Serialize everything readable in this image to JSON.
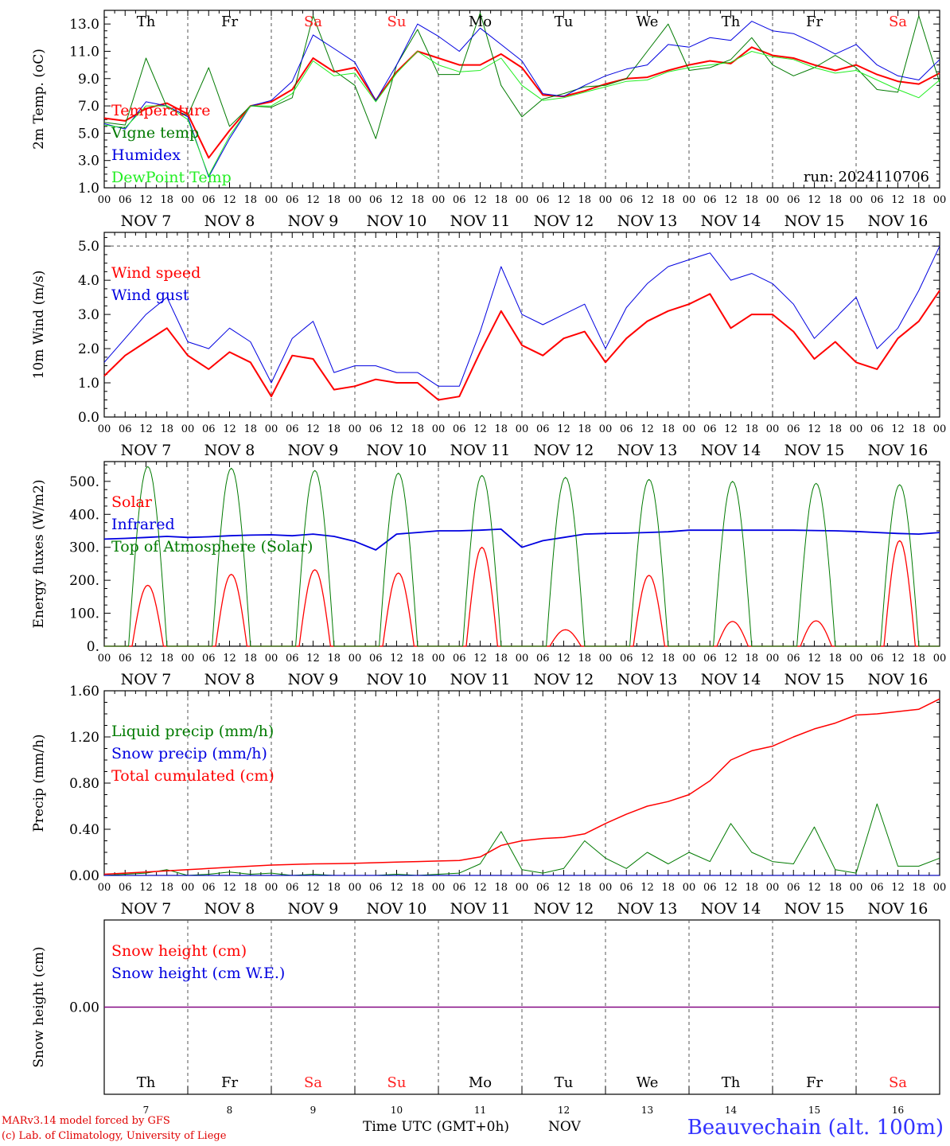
{
  "footer": {
    "credit_line1": "MARv3.14 model forced by GFS",
    "credit_line2": "(c) Lab. of Climatology, University of Liege",
    "time_label": "Time UTC (GMT+0h)",
    "month_label": "NOV",
    "station": "Beauvechain (alt. 100m)"
  },
  "colors": {
    "red": "#ff0000",
    "green": "#007a00",
    "blue": "#0000e0",
    "light_green": "#22ee22",
    "purple": "#800080",
    "grid": "#555555",
    "saturday_sunday": "#ff2020"
  },
  "days": [
    "Th",
    "Fr",
    "Sa",
    "Su",
    "Mo",
    "Tu",
    "We",
    "Th",
    "Fr",
    "Sa"
  ],
  "weekend": [
    false,
    false,
    true,
    true,
    false,
    false,
    false,
    false,
    false,
    true
  ],
  "dates": [
    "NOV  7",
    "NOV  8",
    "NOV  9",
    "NOV 10",
    "NOV 11",
    "NOV 12",
    "NOV 13",
    "NOV 14",
    "NOV 15",
    "NOV 16"
  ],
  "day_numbers": [
    "7",
    "8",
    "9",
    "10",
    "11",
    "12",
    "13",
    "14",
    "15",
    "16"
  ],
  "hour_ticks": [
    "00",
    "06",
    "12",
    "18"
  ],
  "end_tick": "00",
  "chart_data": [
    {
      "type": "line",
      "ylabel": "2m Temp. (oC)",
      "ylim": [
        1.0,
        14.0
      ],
      "yticks": [
        "1.0",
        "3.0",
        "5.0",
        "7.0",
        "9.0",
        "11.0",
        "13.0"
      ],
      "annotation": "run: 2024110706",
      "x_hours": [
        0,
        6,
        12,
        18,
        24,
        30,
        36,
        42,
        48,
        54,
        60,
        66,
        72,
        78,
        84,
        90,
        96,
        102,
        108,
        114,
        120,
        126,
        132,
        138,
        144,
        150,
        156,
        162,
        168,
        174,
        180,
        186,
        192,
        198,
        204,
        210,
        216,
        222,
        228,
        234,
        240
      ],
      "series": [
        {
          "name": "Temperature",
          "color": "#ff0000",
          "width": 2,
          "values": [
            6.1,
            5.9,
            6.8,
            7.2,
            6.4,
            3.2,
            5.2,
            7.0,
            7.3,
            8.2,
            10.5,
            9.5,
            9.8,
            7.4,
            9.5,
            11.0,
            10.5,
            10.0,
            10.0,
            10.8,
            9.8,
            7.8,
            7.7,
            8.1,
            8.6,
            9.0,
            9.1,
            9.6,
            10.0,
            10.3,
            10.1,
            11.3,
            10.7,
            10.5,
            10.0,
            9.6,
            10.0,
            9.3,
            8.8,
            8.6,
            9.4
          ]
        },
        {
          "name": "Vigne temp",
          "color": "#007a00",
          "width": 1,
          "values": [
            5.8,
            5.6,
            10.5,
            6.9,
            6.3,
            9.8,
            5.5,
            7.0,
            6.9,
            7.6,
            13.6,
            9.6,
            8.5,
            4.6,
            10.0,
            12.6,
            9.3,
            9.3,
            13.8,
            8.5,
            6.2,
            7.5,
            7.9,
            8.4,
            8.5,
            9.0,
            11.0,
            13.0,
            9.6,
            9.8,
            10.4,
            12.0,
            10.0,
            9.2,
            9.8,
            10.7,
            9.8,
            8.2,
            8.0,
            13.6,
            8.7
          ]
        },
        {
          "name": "Humidex",
          "color": "#0000e0",
          "width": 1,
          "values": [
            5.7,
            5.3,
            7.3,
            7.0,
            6.2,
            1.8,
            4.6,
            7.0,
            7.4,
            8.8,
            12.2,
            11.2,
            10.2,
            7.4,
            10.0,
            13.0,
            12.1,
            11.0,
            12.7,
            11.5,
            10.3,
            7.9,
            7.7,
            8.5,
            9.2,
            9.7,
            10.0,
            11.5,
            11.3,
            12.0,
            11.8,
            13.2,
            12.5,
            12.3,
            11.6,
            10.8,
            11.5,
            10.0,
            9.2,
            8.9,
            10.4
          ]
        },
        {
          "name": "DewPoint Temp",
          "color": "#22ee22",
          "width": 1,
          "values": [
            5.6,
            5.4,
            7.0,
            7.0,
            6.0,
            1.9,
            4.8,
            7.0,
            7.0,
            7.9,
            10.3,
            9.2,
            9.4,
            7.3,
            9.4,
            11.0,
            10.0,
            9.5,
            9.6,
            10.5,
            8.5,
            7.4,
            7.6,
            8.0,
            8.4,
            8.8,
            8.9,
            9.5,
            9.8,
            10.0,
            10.2,
            11.0,
            10.6,
            10.4,
            9.8,
            9.4,
            9.6,
            8.9,
            8.2,
            7.6,
            8.9
          ]
        }
      ]
    },
    {
      "type": "line",
      "ylabel": "10m Wind (m/s)",
      "ylim": [
        0.0,
        5.0
      ],
      "yticks": [
        "0.0",
        "1.0",
        "2.0",
        "3.0",
        "4.0",
        "5.0"
      ],
      "x_hours": [
        0,
        6,
        12,
        18,
        24,
        30,
        36,
        42,
        48,
        54,
        60,
        66,
        72,
        78,
        84,
        90,
        96,
        102,
        108,
        114,
        120,
        126,
        132,
        138,
        144,
        150,
        156,
        162,
        168,
        174,
        180,
        186,
        192,
        198,
        204,
        210,
        216,
        222,
        228,
        234,
        240
      ],
      "series": [
        {
          "name": "Wind speed",
          "color": "#ff0000",
          "width": 2,
          "values": [
            1.2,
            1.8,
            2.2,
            2.6,
            1.8,
            1.4,
            1.9,
            1.6,
            0.6,
            1.8,
            1.7,
            0.8,
            0.9,
            1.1,
            1.0,
            1.0,
            0.5,
            0.6,
            1.9,
            3.1,
            2.1,
            1.8,
            2.3,
            2.5,
            1.6,
            2.3,
            2.8,
            3.1,
            3.3,
            3.6,
            2.6,
            3.0,
            3.0,
            2.5,
            1.7,
            2.2,
            1.6,
            1.4,
            2.3,
            2.8,
            3.7
          ]
        },
        {
          "name": "Wind gust",
          "color": "#0000e0",
          "width": 1,
          "values": [
            1.6,
            2.3,
            3.0,
            3.5,
            2.2,
            2.0,
            2.6,
            2.2,
            1.0,
            2.3,
            2.8,
            1.3,
            1.5,
            1.5,
            1.3,
            1.3,
            0.9,
            0.9,
            2.5,
            4.4,
            3.0,
            2.7,
            3.0,
            3.3,
            2.0,
            3.2,
            3.9,
            4.4,
            4.6,
            4.8,
            4.0,
            4.2,
            3.9,
            3.3,
            2.3,
            2.9,
            3.5,
            2.0,
            2.6,
            3.7,
            5.0
          ]
        }
      ]
    },
    {
      "type": "line",
      "ylabel": "Energy fluxes (W/m2)",
      "ylim": [
        0,
        550
      ],
      "yticks": [
        "0.",
        "100.",
        "200.",
        "300.",
        "400.",
        "500."
      ],
      "series": [
        {
          "name": "Solar",
          "color": "#ff0000",
          "width": 1.3,
          "daily_peaks": [
            185,
            218,
            232,
            222,
            300,
            50,
            215,
            75,
            77,
            320
          ]
        },
        {
          "name": "Infrared",
          "color": "#0000e0",
          "width": 1.8,
          "x_hours": [
            0,
            6,
            12,
            18,
            24,
            30,
            36,
            42,
            48,
            54,
            60,
            66,
            72,
            78,
            84,
            90,
            96,
            102,
            108,
            114,
            120,
            126,
            132,
            138,
            144,
            150,
            156,
            162,
            168,
            174,
            180,
            186,
            192,
            198,
            204,
            210,
            216,
            222,
            228,
            234,
            240
          ],
          "values": [
            325,
            327,
            330,
            333,
            330,
            332,
            335,
            337,
            338,
            335,
            340,
            333,
            318,
            292,
            340,
            345,
            350,
            350,
            352,
            355,
            300,
            320,
            330,
            340,
            342,
            343,
            345,
            347,
            352,
            352,
            352,
            352,
            352,
            352,
            351,
            350,
            348,
            345,
            342,
            340,
            345
          ]
        },
        {
          "name": "Top of Atmosphere (Solar)",
          "color": "#007a00",
          "width": 1,
          "daily_peaks": [
            545,
            540,
            533,
            525,
            518,
            512,
            506,
            500,
            494,
            490
          ]
        }
      ]
    },
    {
      "type": "line",
      "ylabel": "Precip (mm/h)",
      "ylim": [
        0.0,
        1.6
      ],
      "yticks": [
        "0.00",
        "0.40",
        "0.80",
        "1.20",
        "1.60"
      ],
      "x_hours": [
        0,
        6,
        12,
        18,
        24,
        30,
        36,
        42,
        48,
        54,
        60,
        66,
        72,
        78,
        84,
        90,
        96,
        102,
        108,
        114,
        120,
        126,
        132,
        138,
        144,
        150,
        156,
        162,
        168,
        174,
        180,
        186,
        192,
        198,
        204,
        210,
        216,
        222,
        228,
        234,
        240
      ],
      "series": [
        {
          "name": "Liquid precip (mm/h)",
          "color": "#007a00",
          "width": 1,
          "values": [
            0.0,
            0.01,
            0.02,
            0.05,
            0.0,
            0.01,
            0.03,
            0.01,
            0.02,
            0.0,
            0.01,
            0.0,
            0.0,
            0.0,
            0.01,
            0.0,
            0.01,
            0.02,
            0.1,
            0.38,
            0.05,
            0.02,
            0.06,
            0.3,
            0.15,
            0.06,
            0.2,
            0.1,
            0.2,
            0.12,
            0.45,
            0.2,
            0.12,
            0.1,
            0.42,
            0.05,
            0.02,
            0.62,
            0.08,
            0.08,
            0.15
          ]
        },
        {
          "name": "Snow precip (mm/h)",
          "color": "#0000e0",
          "width": 1,
          "values": [
            0,
            0,
            0,
            0,
            0,
            0,
            0,
            0,
            0,
            0,
            0,
            0,
            0,
            0,
            0,
            0,
            0,
            0,
            0,
            0,
            0,
            0,
            0,
            0,
            0,
            0,
            0,
            0,
            0,
            0,
            0,
            0,
            0,
            0,
            0,
            0,
            0,
            0,
            0,
            0,
            0
          ]
        },
        {
          "name": "Total cumulated (cm)",
          "color": "#ff0000",
          "width": 1.5,
          "values": [
            0.01,
            0.02,
            0.03,
            0.04,
            0.05,
            0.06,
            0.07,
            0.08,
            0.09,
            0.095,
            0.1,
            0.102,
            0.105,
            0.11,
            0.115,
            0.12,
            0.125,
            0.13,
            0.16,
            0.26,
            0.3,
            0.32,
            0.33,
            0.36,
            0.45,
            0.53,
            0.6,
            0.64,
            0.7,
            0.82,
            1.0,
            1.08,
            1.12,
            1.2,
            1.27,
            1.32,
            1.39,
            1.4,
            1.42,
            1.44,
            1.53
          ]
        }
      ]
    },
    {
      "type": "line",
      "ylabel": "Snow height (cm)",
      "yticks": [
        "0.00"
      ],
      "series": [
        {
          "name": "Snow height (cm)",
          "color": "#ff0000",
          "values": [
            0,
            0
          ]
        },
        {
          "name": "Snow height (cm W.E.)",
          "color": "#0000e0",
          "values": [
            0,
            0
          ]
        }
      ]
    }
  ]
}
